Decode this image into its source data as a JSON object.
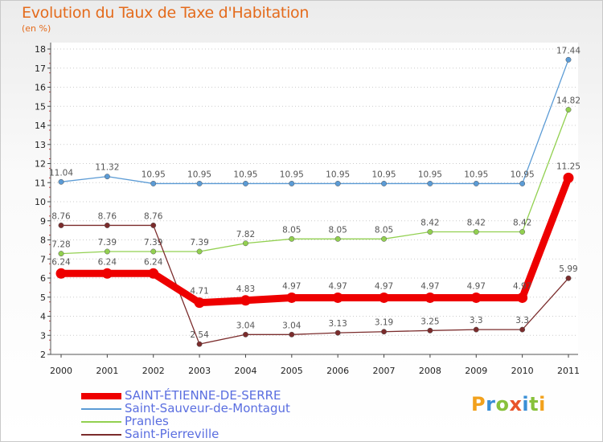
{
  "chart_data": {
    "type": "line",
    "title": "Evolution du Taux de Taxe d'Habitation",
    "subtitle": "(en %)",
    "categories": [
      "2000",
      "2001",
      "2002",
      "2003",
      "2004",
      "2005",
      "2006",
      "2007",
      "2008",
      "2009",
      "2010",
      "2011"
    ],
    "ylim": [
      2,
      18
    ],
    "yticks": [
      "2",
      "3",
      "4",
      "5",
      "6",
      "7",
      "8",
      "9",
      "10",
      "11",
      "12",
      "13",
      "14",
      "15",
      "16",
      "17",
      "18"
    ],
    "grid": "horizontal dotted",
    "series": [
      {
        "name": "Saint-Sauveur-de-Montagut",
        "color": "#5b9bd5",
        "values": [
          11.04,
          11.32,
          10.95,
          10.95,
          10.95,
          10.95,
          10.95,
          10.95,
          10.95,
          10.95,
          10.95,
          17.44
        ],
        "labels": [
          "11.04",
          "11.32",
          "10.95",
          "10.95",
          "10.95",
          "10.95",
          "10.95",
          "10.95",
          "10.95",
          "10.95",
          "10.95",
          "17.44"
        ]
      },
      {
        "name": "Pranles",
        "color": "#92d050",
        "values": [
          7.28,
          7.39,
          7.39,
          7.39,
          7.82,
          8.05,
          8.05,
          8.05,
          8.42,
          8.42,
          8.42,
          14.82
        ],
        "labels": [
          "7.28",
          "7.39",
          "7.39",
          "7.39",
          "7.82",
          "8.05",
          "8.05",
          "8.05",
          "8.42",
          "8.42",
          "8.42",
          "14.82"
        ]
      },
      {
        "name": "Saint-Pierreville",
        "color": "#7b2c2c",
        "values": [
          8.76,
          8.76,
          8.76,
          2.54,
          3.04,
          3.04,
          3.13,
          3.19,
          3.25,
          3.3,
          3.3,
          5.99
        ],
        "labels": [
          "8.76",
          "8.76",
          "8.76",
          "2.54",
          "3.04",
          "3.04",
          "3.13",
          "3.19",
          "3.25",
          "3.3",
          "3.3",
          "5.99"
        ]
      },
      {
        "name": "SAINT-ÉTIENNE-DE-SERRE",
        "color": "#ee0000",
        "values": [
          6.24,
          6.24,
          6.24,
          4.71,
          4.83,
          4.97,
          4.97,
          4.97,
          4.97,
          4.97,
          4.97,
          11.25
        ],
        "labels": [
          "6.24",
          "6.24",
          "6.24",
          "4.71",
          "4.83",
          "4.97",
          "4.97",
          "4.97",
          "4.97",
          "4.97",
          "4.97",
          "11.25"
        ]
      }
    ],
    "legend": [
      {
        "name": "SAINT-ÉTIENNE-DE-SERRE",
        "color": "#ee0000",
        "thick": true
      },
      {
        "name": "Saint-Sauveur-de-Montagut",
        "color": "#5b9bd5",
        "thick": false
      },
      {
        "name": "Pranles",
        "color": "#92d050",
        "thick": false
      },
      {
        "name": "Saint-Pierreville",
        "color": "#7b2c2c",
        "thick": false
      }
    ],
    "legend_position": "bottom-left"
  },
  "logo": {
    "text": "Proxiti"
  }
}
